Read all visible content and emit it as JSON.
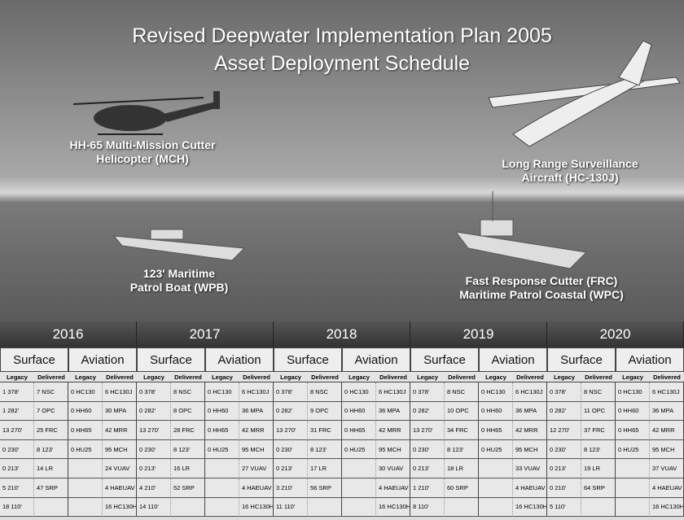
{
  "title": [
    "Revised Deepwater Implementation Plan 2005",
    "Asset Deployment Schedule"
  ],
  "assets": [
    {
      "label": [
        "HH-65 Multi-Mission Cutter",
        "Helicopter (MCH)"
      ]
    },
    {
      "label": [
        "Long Range Surveillance",
        "Aircraft (HC-130J)"
      ]
    },
    {
      "label": [
        "123' Maritime",
        "Patrol Boat (WPB)"
      ]
    },
    {
      "label": [
        "Fast Response Cutter (FRC)",
        "Maritime Patrol Coastal (WPC)"
      ]
    }
  ],
  "table": {
    "group_headers": [
      "Surface",
      "Aviation"
    ],
    "sub_headers": [
      "Legacy",
      "Delivered"
    ],
    "years": [
      {
        "year": "2016",
        "rows": [
          [
            "1 378'",
            "7 NSC",
            "0 HC130",
            "6 HC130J"
          ],
          [
            "1 282'",
            "7 OPC",
            "0 HH60",
            "30 MPA"
          ],
          [
            "13 270'",
            "25 FRC",
            "0 HH65",
            "42 MRR"
          ],
          [
            "0 230'",
            "8 123'",
            "0 HU25",
            "95 MCH"
          ],
          [
            "0 213'",
            "14 LR",
            null,
            "24 VUAV"
          ],
          [
            "5 210'",
            "47 SRP",
            null,
            "4 HAEUAV"
          ],
          [
            "18 110'",
            null,
            null,
            "16 HC130H"
          ]
        ]
      },
      {
        "year": "2017",
        "rows": [
          [
            "0 378'",
            "8 NSC",
            "0 HC130",
            "6 HC130J"
          ],
          [
            "0 282'",
            "8 OPC",
            "0 HH60",
            "36 MPA"
          ],
          [
            "13 270'",
            "28 FRC",
            "0 HH65",
            "42 MRR"
          ],
          [
            "0 230'",
            "8 123'",
            "0 HU25",
            "95 MCH"
          ],
          [
            "0 213'",
            "16 LR",
            null,
            "27 VUAV"
          ],
          [
            "4 210'",
            "52 SRP",
            null,
            "4 HAEUAV"
          ],
          [
            "14 110'",
            null,
            null,
            "16 HC130H"
          ]
        ]
      },
      {
        "year": "2018",
        "rows": [
          [
            "0 378'",
            "8 NSC",
            "0 HC130",
            "6 HC130J"
          ],
          [
            "0 282'",
            "9 OPC",
            "0 HH60",
            "36 MPA"
          ],
          [
            "13 270'",
            "31 FRC",
            "0 HH65",
            "42 MRR"
          ],
          [
            "0 230'",
            "8 123'",
            "0 HU25",
            "95 MCH"
          ],
          [
            "0 213'",
            "17 LR",
            null,
            "30 VUAV"
          ],
          [
            "3 210'",
            "56 SRP",
            null,
            "4 HAEUAV"
          ],
          [
            "11 110'",
            null,
            null,
            "16 HC130H"
          ]
        ]
      },
      {
        "year": "2019",
        "rows": [
          [
            "0 378'",
            "8 NSC",
            "0 HC130",
            "6 HC130J"
          ],
          [
            "0 282'",
            "10 OPC",
            "0 HH60",
            "36 MPA"
          ],
          [
            "13 270'",
            "34 FRC",
            "0 HH65",
            "42 MRR"
          ],
          [
            "0 230'",
            "8 123'",
            "0 HU25",
            "95 MCH"
          ],
          [
            "0 213'",
            "18 LR",
            null,
            "33 VUAV"
          ],
          [
            "1 210'",
            "60 SRP",
            null,
            "4 HAEUAV"
          ],
          [
            "8 110'",
            null,
            null,
            "16 HC130H"
          ]
        ]
      },
      {
        "year": "2020",
        "rows": [
          [
            "0 378'",
            "8 NSC",
            "0 HC130",
            "6 HC130J"
          ],
          [
            "0 282'",
            "11 OPC",
            "0 HH60",
            "36 MPA"
          ],
          [
            "12 270'",
            "37 FRC",
            "0 HH65",
            "42 MRR"
          ],
          [
            "0 230'",
            "8 123'",
            "0 HU25",
            "95 MCH"
          ],
          [
            "0 213'",
            "19 LR",
            null,
            "37 VUAV"
          ],
          [
            "0 210'",
            "64 SRP",
            null,
            "4 HAEUAV"
          ],
          [
            "5 110'",
            null,
            null,
            "16 HC130H"
          ]
        ]
      }
    ]
  }
}
